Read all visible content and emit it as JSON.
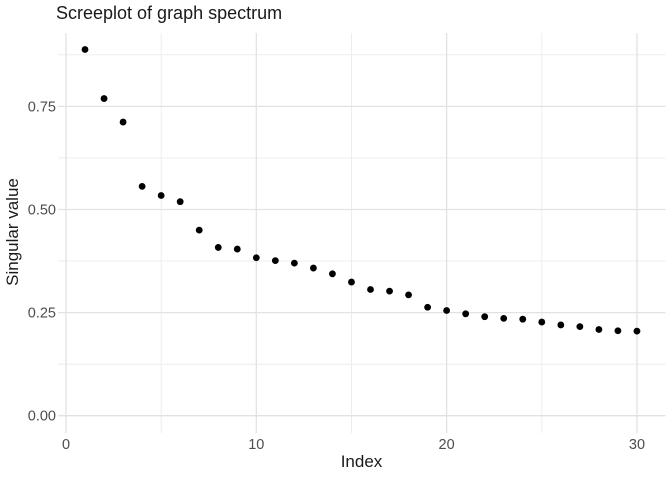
{
  "chart_data": {
    "type": "scatter",
    "title": "Screeplot of graph spectrum",
    "xlabel": "Index",
    "ylabel": "Singular value",
    "x": [
      1,
      2,
      3,
      4,
      5,
      6,
      7,
      8,
      9,
      10,
      11,
      12,
      13,
      14,
      15,
      16,
      17,
      18,
      19,
      20,
      21,
      22,
      23,
      24,
      25,
      26,
      27,
      28,
      29,
      30
    ],
    "y": [
      0.888,
      0.769,
      0.712,
      0.556,
      0.534,
      0.519,
      0.45,
      0.408,
      0.404,
      0.383,
      0.376,
      0.37,
      0.358,
      0.344,
      0.324,
      0.306,
      0.302,
      0.293,
      0.263,
      0.255,
      0.247,
      0.24,
      0.236,
      0.234,
      0.227,
      0.22,
      0.216,
      0.209,
      0.206,
      0.205
    ],
    "x_ticks": {
      "values": [
        0,
        10,
        20,
        30
      ],
      "labels": [
        "0",
        "10",
        "20",
        "30"
      ]
    },
    "y_ticks": {
      "values": [
        0,
        0.25,
        0.5,
        0.75
      ],
      "labels": [
        "0.00",
        "0.25",
        "0.50",
        "0.75"
      ]
    },
    "x_minor": [
      5,
      15,
      25
    ],
    "y_minor": [
      0.125,
      0.375,
      0.625,
      0.875
    ],
    "xlim": [
      -0.42,
      31.5
    ],
    "ylim": [
      -0.042,
      0.928
    ],
    "grid": true,
    "legend": "none",
    "point_color": "#000000",
    "grid_major_color": "#e2e2e2",
    "grid_minor_color": "#ebebeb",
    "tick_label_color": "#4d4d4d",
    "text_color": "#1a1a1a",
    "background": "#ffffff"
  }
}
